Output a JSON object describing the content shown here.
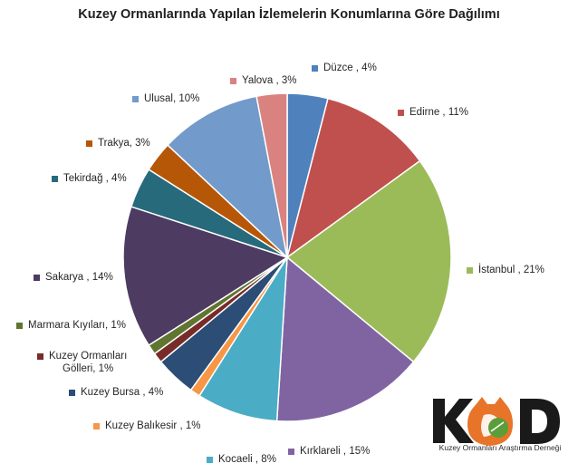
{
  "chart_data": {
    "type": "pie",
    "title": "Kuzey Ormanlarında Yapılan İzlemelerin Konumlarına Göre Dağılımı",
    "slices": [
      {
        "name": "Düzce",
        "value": 4,
        "label": "Düzce , 4%",
        "color": "#4f81bd"
      },
      {
        "name": "Edirne",
        "value": 11,
        "label": "Edirne , 11%",
        "color": "#c0504d"
      },
      {
        "name": "İstanbul",
        "value": 21,
        "label": "İstanbul , 21%",
        "color": "#9bbb59"
      },
      {
        "name": "Kırklareli",
        "value": 15,
        "label": "Kırklareli , 15%",
        "color": "#8064a2"
      },
      {
        "name": "Kocaeli",
        "value": 8,
        "label": "Kocaeli , 8%",
        "color": "#4bacc6"
      },
      {
        "name": "Kuzey Balıkesir",
        "value": 1,
        "label": "Kuzey Balıkesir , 1%",
        "color": "#f79646"
      },
      {
        "name": "Kuzey Bursa",
        "value": 4,
        "label": "Kuzey Bursa , 4%",
        "color": "#2c4d75"
      },
      {
        "name": "Kuzey Ormanları Gölleri",
        "value": 1,
        "label": "Kuzey Ormanları Gölleri, 1%",
        "label_lines": [
          "Kuzey Ormanları",
          "Gölleri, 1%"
        ],
        "color": "#772c2a"
      },
      {
        "name": "Marmara Kıyıları",
        "value": 1,
        "label": "Marmara Kıyıları, 1%",
        "color": "#5f7530"
      },
      {
        "name": "Sakarya",
        "value": 14,
        "label": "Sakarya , 14%",
        "color": "#4d3b62"
      },
      {
        "name": "Tekirdağ",
        "value": 4,
        "label": "Tekirdağ , 4%",
        "color": "#276a7c"
      },
      {
        "name": "Trakya",
        "value": 3,
        "label": "Trakya, 3%",
        "color": "#b65708"
      },
      {
        "name": "Ulusal",
        "value": 10,
        "label": "Ulusal, 10%",
        "color": "#729aca"
      },
      {
        "name": "Yalova",
        "value": 3,
        "label": "Yalova , 3%",
        "color": "#d9827f"
      }
    ]
  },
  "logo": {
    "text": "Kuzey Ormanları Araştırma Derneği",
    "letters": "KD",
    "colors": {
      "dark": "#1a1a1a",
      "fox": "#e8742a",
      "leaf": "#5a9e3a"
    }
  }
}
